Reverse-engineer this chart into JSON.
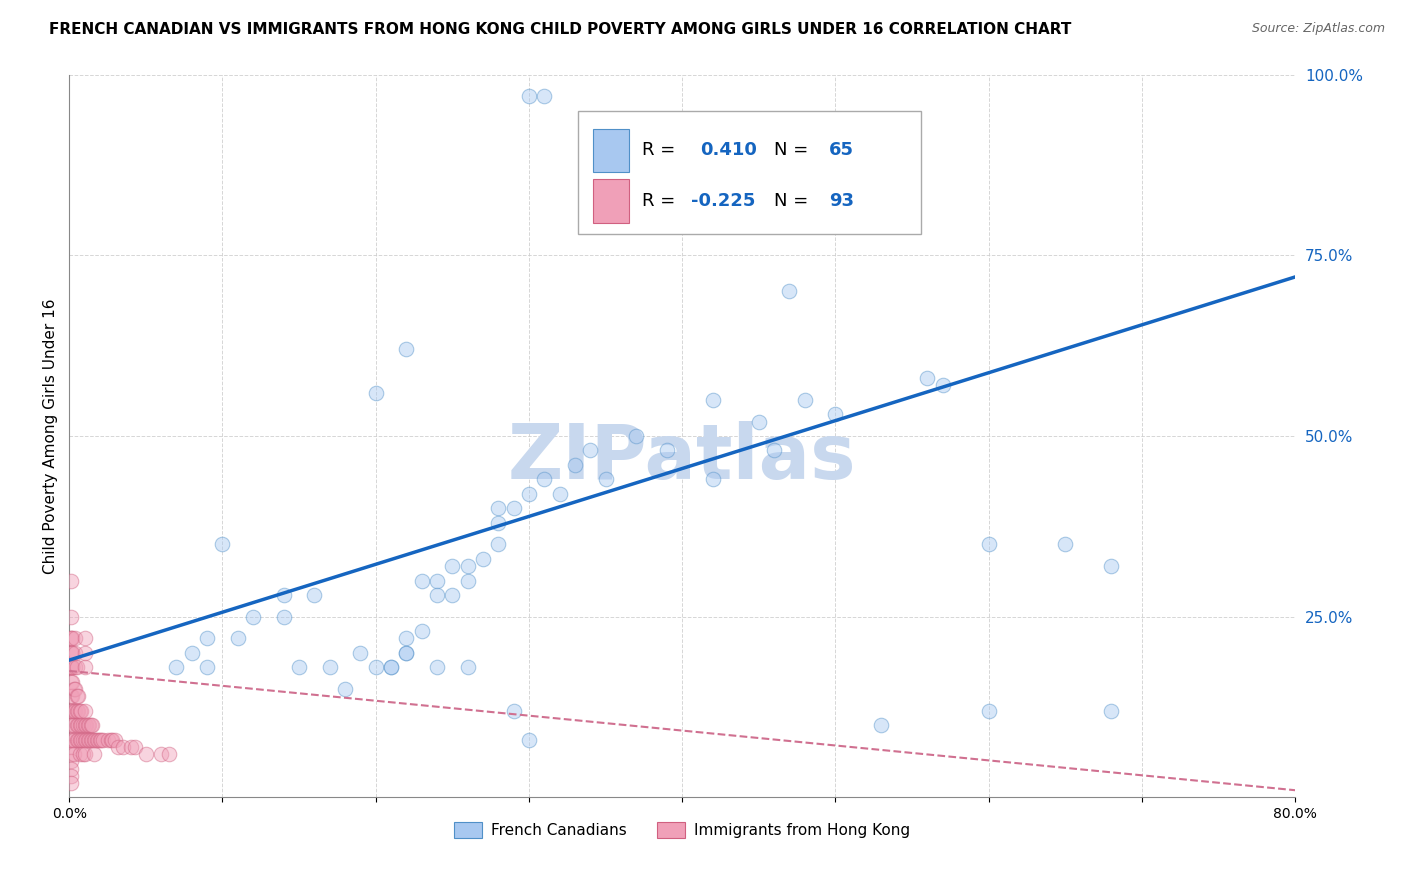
{
  "title": "FRENCH CANADIAN VS IMMIGRANTS FROM HONG KONG CHILD POVERTY AMONG GIRLS UNDER 16 CORRELATION CHART",
  "source": "Source: ZipAtlas.com",
  "ylabel": "Child Poverty Among Girls Under 16",
  "xlim": [
    0.0,
    0.8
  ],
  "ylim": [
    0.0,
    1.0
  ],
  "xticks": [
    0.0,
    0.1,
    0.2,
    0.3,
    0.4,
    0.5,
    0.6,
    0.7,
    0.8
  ],
  "xticklabels": [
    "0.0%",
    "",
    "",
    "",
    "",
    "",
    "",
    "",
    "80.0%"
  ],
  "yticks": [
    0.0,
    0.25,
    0.5,
    0.75,
    1.0
  ],
  "yticklabels": [
    "",
    "25.0%",
    "50.0%",
    "75.0%",
    "100.0%"
  ],
  "blue_fill": "#A8C8F0",
  "blue_edge": "#5090C8",
  "pink_fill": "#F0A0B8",
  "pink_edge": "#D06080",
  "blue_line_color": "#1565C0",
  "pink_line_color": "#D07090",
  "watermark_color": "#C8D8EE",
  "watermark_text": "ZIPatlas",
  "legend_color": "#1565C0",
  "blue_scatter_x": [
    0.3,
    0.31,
    0.1,
    0.11,
    0.12,
    0.14,
    0.17,
    0.19,
    0.2,
    0.21,
    0.22,
    0.22,
    0.23,
    0.24,
    0.24,
    0.25,
    0.25,
    0.26,
    0.26,
    0.27,
    0.28,
    0.28,
    0.28,
    0.29,
    0.3,
    0.31,
    0.32,
    0.33,
    0.34,
    0.35,
    0.37,
    0.39,
    0.42,
    0.42,
    0.45,
    0.46,
    0.48,
    0.5,
    0.55,
    0.56,
    0.57,
    0.6,
    0.6,
    0.65,
    0.68,
    0.68,
    0.07,
    0.08,
    0.09,
    0.09,
    0.14,
    0.15,
    0.18,
    0.21,
    0.22,
    0.23,
    0.24,
    0.26,
    0.29,
    0.3,
    0.47,
    0.53,
    0.22,
    0.2,
    0.16
  ],
  "blue_scatter_y": [
    0.97,
    0.97,
    0.35,
    0.22,
    0.25,
    0.28,
    0.18,
    0.2,
    0.18,
    0.18,
    0.2,
    0.22,
    0.3,
    0.3,
    0.28,
    0.32,
    0.28,
    0.3,
    0.32,
    0.33,
    0.35,
    0.4,
    0.38,
    0.4,
    0.42,
    0.44,
    0.42,
    0.46,
    0.48,
    0.44,
    0.5,
    0.48,
    0.44,
    0.55,
    0.52,
    0.48,
    0.55,
    0.53,
    0.82,
    0.58,
    0.57,
    0.35,
    0.12,
    0.35,
    0.32,
    0.12,
    0.18,
    0.2,
    0.22,
    0.18,
    0.25,
    0.18,
    0.15,
    0.18,
    0.2,
    0.23,
    0.18,
    0.18,
    0.12,
    0.08,
    0.7,
    0.1,
    0.62,
    0.56,
    0.28
  ],
  "pink_scatter_x": [
    0.001,
    0.001,
    0.001,
    0.001,
    0.001,
    0.001,
    0.001,
    0.001,
    0.001,
    0.001,
    0.001,
    0.001,
    0.001,
    0.001,
    0.001,
    0.001,
    0.001,
    0.001,
    0.002,
    0.002,
    0.002,
    0.002,
    0.002,
    0.002,
    0.002,
    0.002,
    0.002,
    0.002,
    0.003,
    0.003,
    0.003,
    0.003,
    0.003,
    0.004,
    0.004,
    0.004,
    0.004,
    0.004,
    0.005,
    0.005,
    0.005,
    0.005,
    0.005,
    0.006,
    0.006,
    0.006,
    0.006,
    0.007,
    0.007,
    0.007,
    0.007,
    0.008,
    0.008,
    0.008,
    0.009,
    0.009,
    0.009,
    0.01,
    0.01,
    0.01,
    0.01,
    0.01,
    0.01,
    0.01,
    0.011,
    0.011,
    0.012,
    0.012,
    0.013,
    0.013,
    0.014,
    0.014,
    0.015,
    0.015,
    0.016,
    0.016,
    0.017,
    0.018,
    0.019,
    0.02,
    0.021,
    0.022,
    0.025,
    0.027,
    0.028,
    0.03,
    0.032,
    0.035,
    0.04,
    0.043,
    0.05,
    0.06,
    0.065
  ],
  "pink_scatter_y": [
    0.3,
    0.25,
    0.22,
    0.2,
    0.18,
    0.16,
    0.14,
    0.12,
    0.1,
    0.08,
    0.07,
    0.06,
    0.05,
    0.04,
    0.03,
    0.02,
    0.18,
    0.22,
    0.2,
    0.18,
    0.16,
    0.14,
    0.12,
    0.1,
    0.08,
    0.18,
    0.2,
    0.22,
    0.15,
    0.12,
    0.1,
    0.08,
    0.06,
    0.15,
    0.18,
    0.2,
    0.22,
    0.12,
    0.14,
    0.12,
    0.1,
    0.08,
    0.18,
    0.14,
    0.12,
    0.1,
    0.08,
    0.12,
    0.1,
    0.08,
    0.06,
    0.12,
    0.1,
    0.08,
    0.1,
    0.08,
    0.06,
    0.12,
    0.1,
    0.08,
    0.06,
    0.18,
    0.2,
    0.22,
    0.1,
    0.08,
    0.1,
    0.08,
    0.1,
    0.08,
    0.1,
    0.08,
    0.1,
    0.08,
    0.08,
    0.06,
    0.08,
    0.08,
    0.08,
    0.08,
    0.08,
    0.08,
    0.08,
    0.08,
    0.08,
    0.08,
    0.07,
    0.07,
    0.07,
    0.07,
    0.06,
    0.06,
    0.06
  ],
  "blue_line_x": [
    0.0,
    0.8
  ],
  "blue_line_y": [
    0.19,
    0.72
  ],
  "pink_line_x": [
    0.0,
    0.8
  ],
  "pink_line_y": [
    0.175,
    0.01
  ],
  "background_color": "#FFFFFF",
  "grid_color": "#CCCCCC",
  "title_fontsize": 11,
  "label_fontsize": 11,
  "tick_fontsize": 10,
  "legend_fontsize": 13,
  "watermark_fontsize": 55,
  "scatter_size": 110,
  "scatter_alpha": 0.45
}
